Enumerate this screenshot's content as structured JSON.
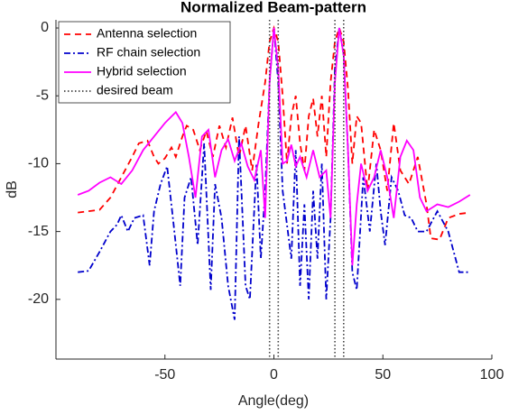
{
  "chart_data": {
    "type": "line",
    "title": "Normalized Beam-pattern",
    "xlabel": "Angle(deg)",
    "ylabel": "dB",
    "xlim": [
      -100,
      100
    ],
    "ylim": [
      -24.4,
      0.6
    ],
    "xticks": [
      -50,
      0,
      50,
      100
    ],
    "yticks": [
      0,
      -5,
      -10,
      -15,
      -20
    ],
    "grid": false,
    "legend": "upper left",
    "series": [
      {
        "name": "Antenna selection",
        "color": "#ff0000",
        "dash": "dashed",
        "x": [
          -90,
          -80,
          -75,
          -70,
          -65,
          -62,
          -58,
          -55,
          -53,
          -50,
          -47,
          -45,
          -42,
          -40,
          -37,
          -34,
          -31,
          -28,
          -25,
          -22,
          -19,
          -16,
          -13,
          -10,
          -7,
          -4,
          -2,
          0,
          2,
          4,
          6,
          8,
          10,
          12,
          14,
          16,
          18,
          20,
          22,
          24,
          26,
          28,
          30,
          32,
          34,
          36,
          38,
          40,
          43,
          46,
          49,
          52,
          55,
          58,
          62,
          66,
          70,
          72,
          76,
          80,
          85,
          90
        ],
        "values": [
          -13.6,
          -13.4,
          -12.5,
          -11,
          -9.5,
          -8.5,
          -8.3,
          -9.5,
          -10,
          -9.6,
          -8.8,
          -9.5,
          -8,
          -7.2,
          -7.5,
          -9,
          -7.6,
          -9.5,
          -7.2,
          -8.8,
          -6.6,
          -9.5,
          -7.2,
          -10.5,
          -7,
          -4,
          -1,
          0,
          -1,
          -5,
          -10,
          -6.5,
          -5,
          -8.5,
          -10.5,
          -6.5,
          -5.2,
          -8,
          -5,
          -9.5,
          -4,
          -1,
          0,
          -1,
          -4.5,
          -10,
          -6.5,
          -7,
          -12,
          -7.5,
          -9,
          -12,
          -7,
          -10.5,
          -11.5,
          -9.5,
          -13,
          -15.5,
          -15.6,
          -14,
          -13.7,
          -13.6
        ]
      },
      {
        "name": "RF chain selection",
        "color": "#0000cc",
        "dash": "dashdot",
        "x": [
          -90,
          -85,
          -80,
          -75,
          -72,
          -70,
          -67,
          -64,
          -60,
          -57,
          -55,
          -52,
          -49,
          -46,
          -43,
          -41,
          -38,
          -35,
          -32,
          -29,
          -27,
          -24,
          -21,
          -18,
          -16,
          -13,
          -11,
          -8,
          -6,
          -4,
          -2,
          0,
          2,
          4,
          6,
          8,
          10,
          12,
          14,
          16,
          18,
          20,
          22,
          24,
          26,
          28,
          30,
          32,
          34,
          36,
          38,
          41,
          44,
          47,
          49,
          51,
          54,
          57,
          60,
          63,
          66,
          70,
          75,
          80,
          85,
          90
        ],
        "values": [
          -18,
          -17.9,
          -16.5,
          -15,
          -14.5,
          -13.8,
          -15,
          -14,
          -13.8,
          -17.5,
          -13.5,
          -11.5,
          -10.2,
          -14.5,
          -19,
          -12.5,
          -11,
          -16,
          -8.5,
          -19.3,
          -11.5,
          -14,
          -19,
          -21.5,
          -8,
          -19,
          -20,
          -10,
          -17,
          -12,
          -4,
          0,
          -4,
          -12,
          -14.5,
          -17,
          -9,
          -19,
          -13,
          -20,
          -12,
          -17,
          -10,
          -20,
          -14,
          -3,
          0,
          -2,
          -9,
          -18,
          -19.3,
          -11,
          -15,
          -10,
          -13.5,
          -16,
          -11,
          -12,
          -13.8,
          -14,
          -15,
          -15,
          -13.5,
          -15,
          -18,
          -18
        ]
      },
      {
        "name": "Hybrid selection",
        "color": "#ff00ff",
        "dash": "solid",
        "x": [
          -90,
          -85,
          -80,
          -75,
          -70,
          -65,
          -60,
          -55,
          -50,
          -45,
          -42,
          -39,
          -36,
          -33,
          -30,
          -27,
          -24,
          -21,
          -18,
          -15,
          -12,
          -9,
          -6,
          -4,
          -2,
          0,
          2,
          4,
          6,
          8,
          10,
          12,
          15,
          18,
          21,
          24,
          26,
          28,
          30,
          32,
          34,
          36,
          38,
          40,
          43,
          46,
          49,
          52,
          55,
          58,
          61,
          64,
          67,
          70,
          75,
          80,
          85,
          90
        ],
        "values": [
          -12.3,
          -12,
          -11.4,
          -11,
          -11.5,
          -10.5,
          -9,
          -8,
          -7,
          -6.2,
          -7,
          -9.5,
          -12.5,
          -8,
          -7.5,
          -11,
          -9,
          -8.2,
          -9.8,
          -8.5,
          -10.2,
          -11.2,
          -9,
          -14,
          -4,
          0,
          -3,
          -10,
          -9.8,
          -8.6,
          -10.2,
          -9.5,
          -11,
          -9,
          -11,
          -10.5,
          -14,
          -4,
          0,
          -2,
          -9,
          -17.5,
          -13,
          -10,
          -12,
          -11,
          -9,
          -11,
          -14,
          -9.5,
          -8.3,
          -9,
          -12.5,
          -13.5,
          -13,
          -13.2,
          -12.8,
          -12.3
        ]
      },
      {
        "name": "desired beam",
        "color": "#444444",
        "dash": "dotted",
        "x": [
          -2,
          -2,
          null,
          2,
          2,
          null,
          28,
          28,
          null,
          32,
          32
        ],
        "values": [
          0.6,
          -24.4,
          null,
          0.6,
          -24.4,
          null,
          0.6,
          -24.4,
          null,
          0.6,
          -24.4
        ]
      }
    ]
  }
}
